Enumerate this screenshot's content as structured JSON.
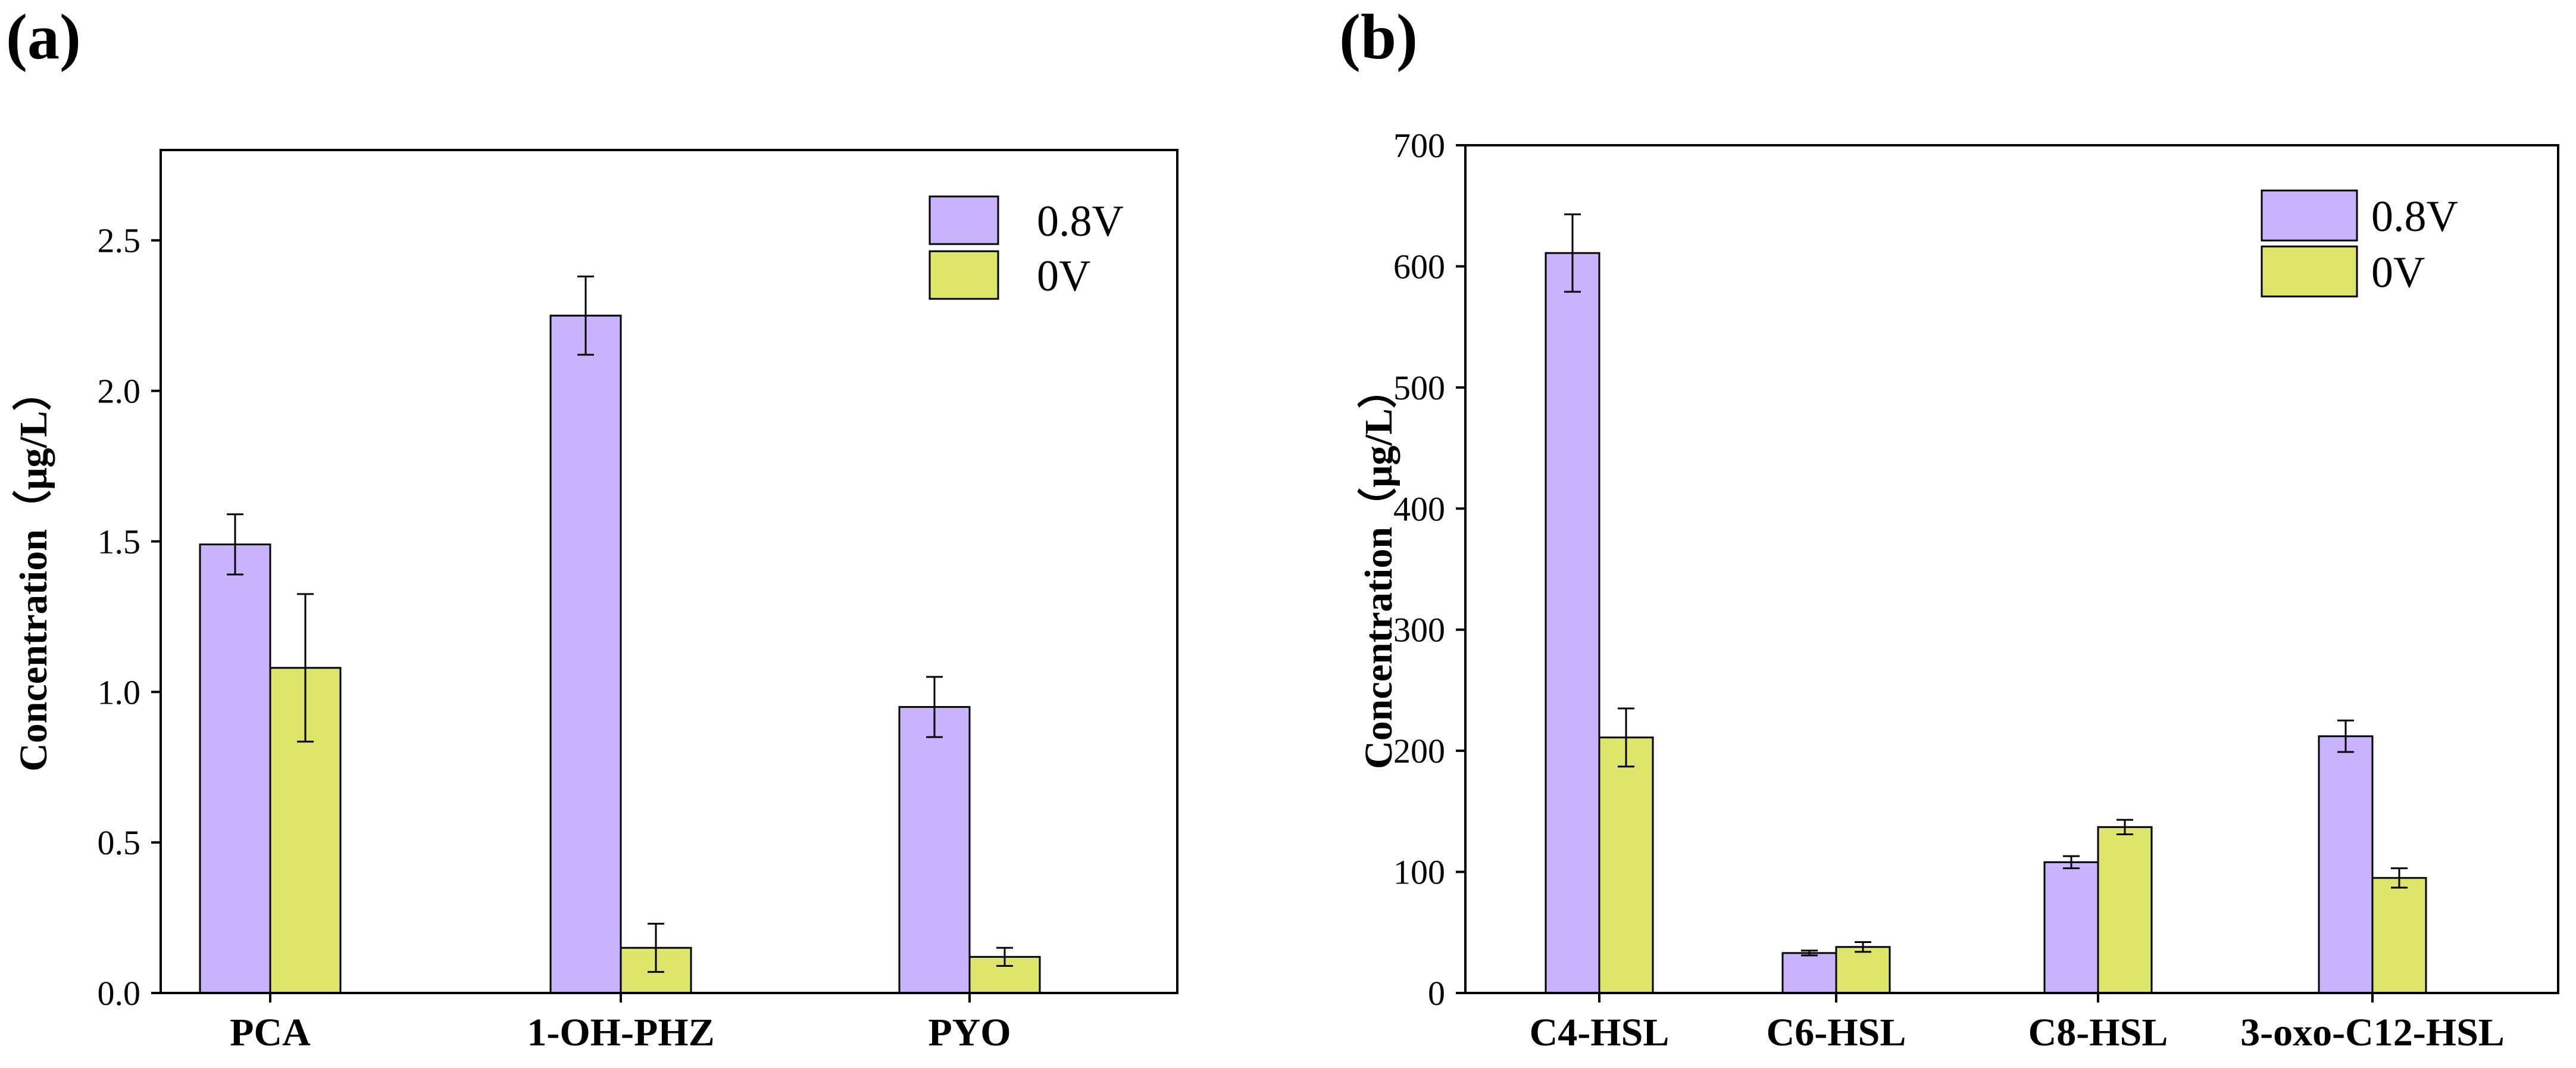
{
  "colors": {
    "s08": "#c9b3ff",
    "s0": "#dde56b",
    "stroke": "#000000"
  },
  "chart_data": [
    {
      "type": "bar",
      "panel_label": "(a)",
      "categories": [
        "PCA",
        "1-OH-PHZ",
        "PYO"
      ],
      "series": [
        {
          "name": "0.8V",
          "values": [
            1.49,
            2.25,
            0.95
          ],
          "errors": [
            0.1,
            0.13,
            0.1
          ]
        },
        {
          "name": "0V",
          "values": [
            1.08,
            0.15,
            0.12
          ],
          "errors": [
            0.245,
            0.08,
            0.03
          ]
        }
      ],
      "title": "",
      "xlabel": "",
      "ylabel": "Concentration（μg/L）",
      "ylim": [
        0,
        2.8
      ],
      "yticks": [
        0.0,
        0.5,
        1.0,
        1.5,
        2.0,
        2.5
      ],
      "ytick_labels": [
        "0.0",
        "0.5",
        "1.0",
        "1.5",
        "2.0",
        "2.5"
      ],
      "legend": "top-right",
      "grid": false
    },
    {
      "type": "bar",
      "panel_label": "(b)",
      "categories": [
        "C4-HSL",
        "C6-HSL",
        "C8-HSL",
        "3-oxo-C12-HSL"
      ],
      "series": [
        {
          "name": "0.8V",
          "values": [
            611,
            33,
            108,
            212
          ],
          "errors": [
            32,
            2,
            5,
            13
          ]
        },
        {
          "name": "0V",
          "values": [
            211,
            38,
            137,
            95
          ],
          "errors": [
            24,
            4,
            6,
            8
          ]
        }
      ],
      "title": "",
      "xlabel": "",
      "ylabel": "Concentration（μg/L）",
      "ylim": [
        0,
        700
      ],
      "yticks": [
        0,
        100,
        200,
        300,
        400,
        500,
        600,
        700
      ],
      "ytick_labels": [
        "0",
        "100",
        "200",
        "300",
        "400",
        "500",
        "600",
        "700"
      ],
      "legend": "top-right",
      "grid": false
    }
  ]
}
